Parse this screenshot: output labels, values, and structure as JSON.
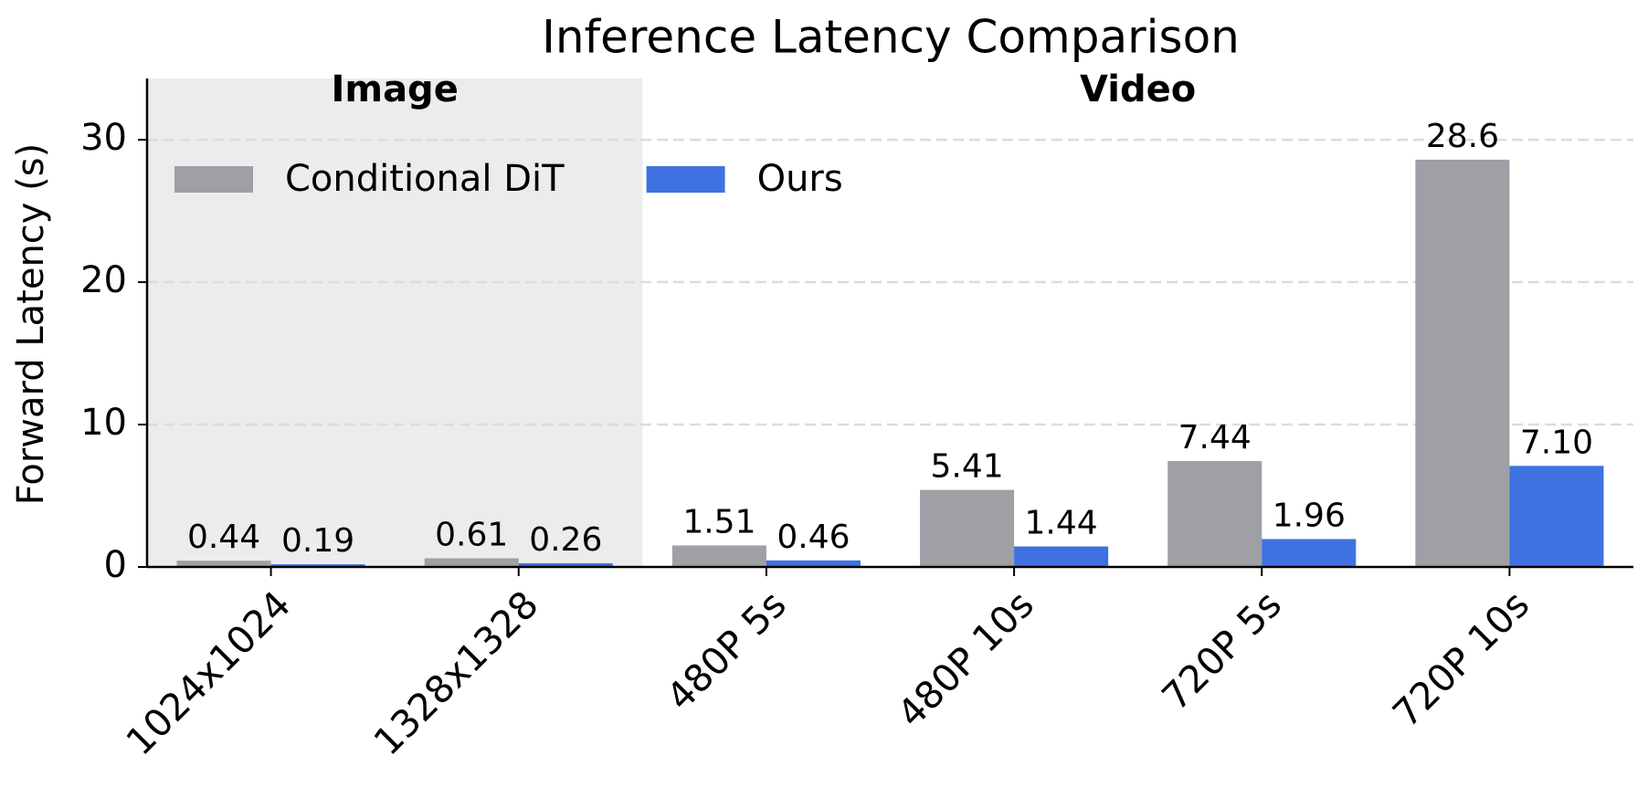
{
  "chart_data": {
    "type": "bar",
    "title": "Inference Latency Comparison",
    "y_label": "Forward Latency (s)",
    "categories": [
      "1024x1024",
      "1328x1328",
      "480P 5s",
      "480P 10s",
      "720P 5s",
      "720P 10s"
    ],
    "series": [
      {
        "name": "Conditional DiT",
        "color": "#9ea0a6",
        "values": [
          0.44,
          0.61,
          1.51,
          5.41,
          7.44,
          28.6
        ],
        "value_labels": [
          "0.44",
          "0.61",
          "1.51",
          "5.41",
          "7.44",
          "28.6"
        ]
      },
      {
        "name": "Ours",
        "color": "#3f72e0",
        "values": [
          0.19,
          0.26,
          0.46,
          1.44,
          1.96,
          7.1
        ],
        "value_labels": [
          "0.19",
          "0.26",
          "0.46",
          "1.44",
          "1.96",
          "7.10"
        ]
      }
    ],
    "annotations": [
      "Image",
      "Video"
    ],
    "ylim": [
      0,
      34.3
    ],
    "yticks": [
      0,
      10,
      20,
      30
    ],
    "grid": true,
    "legend": "upper left"
  }
}
